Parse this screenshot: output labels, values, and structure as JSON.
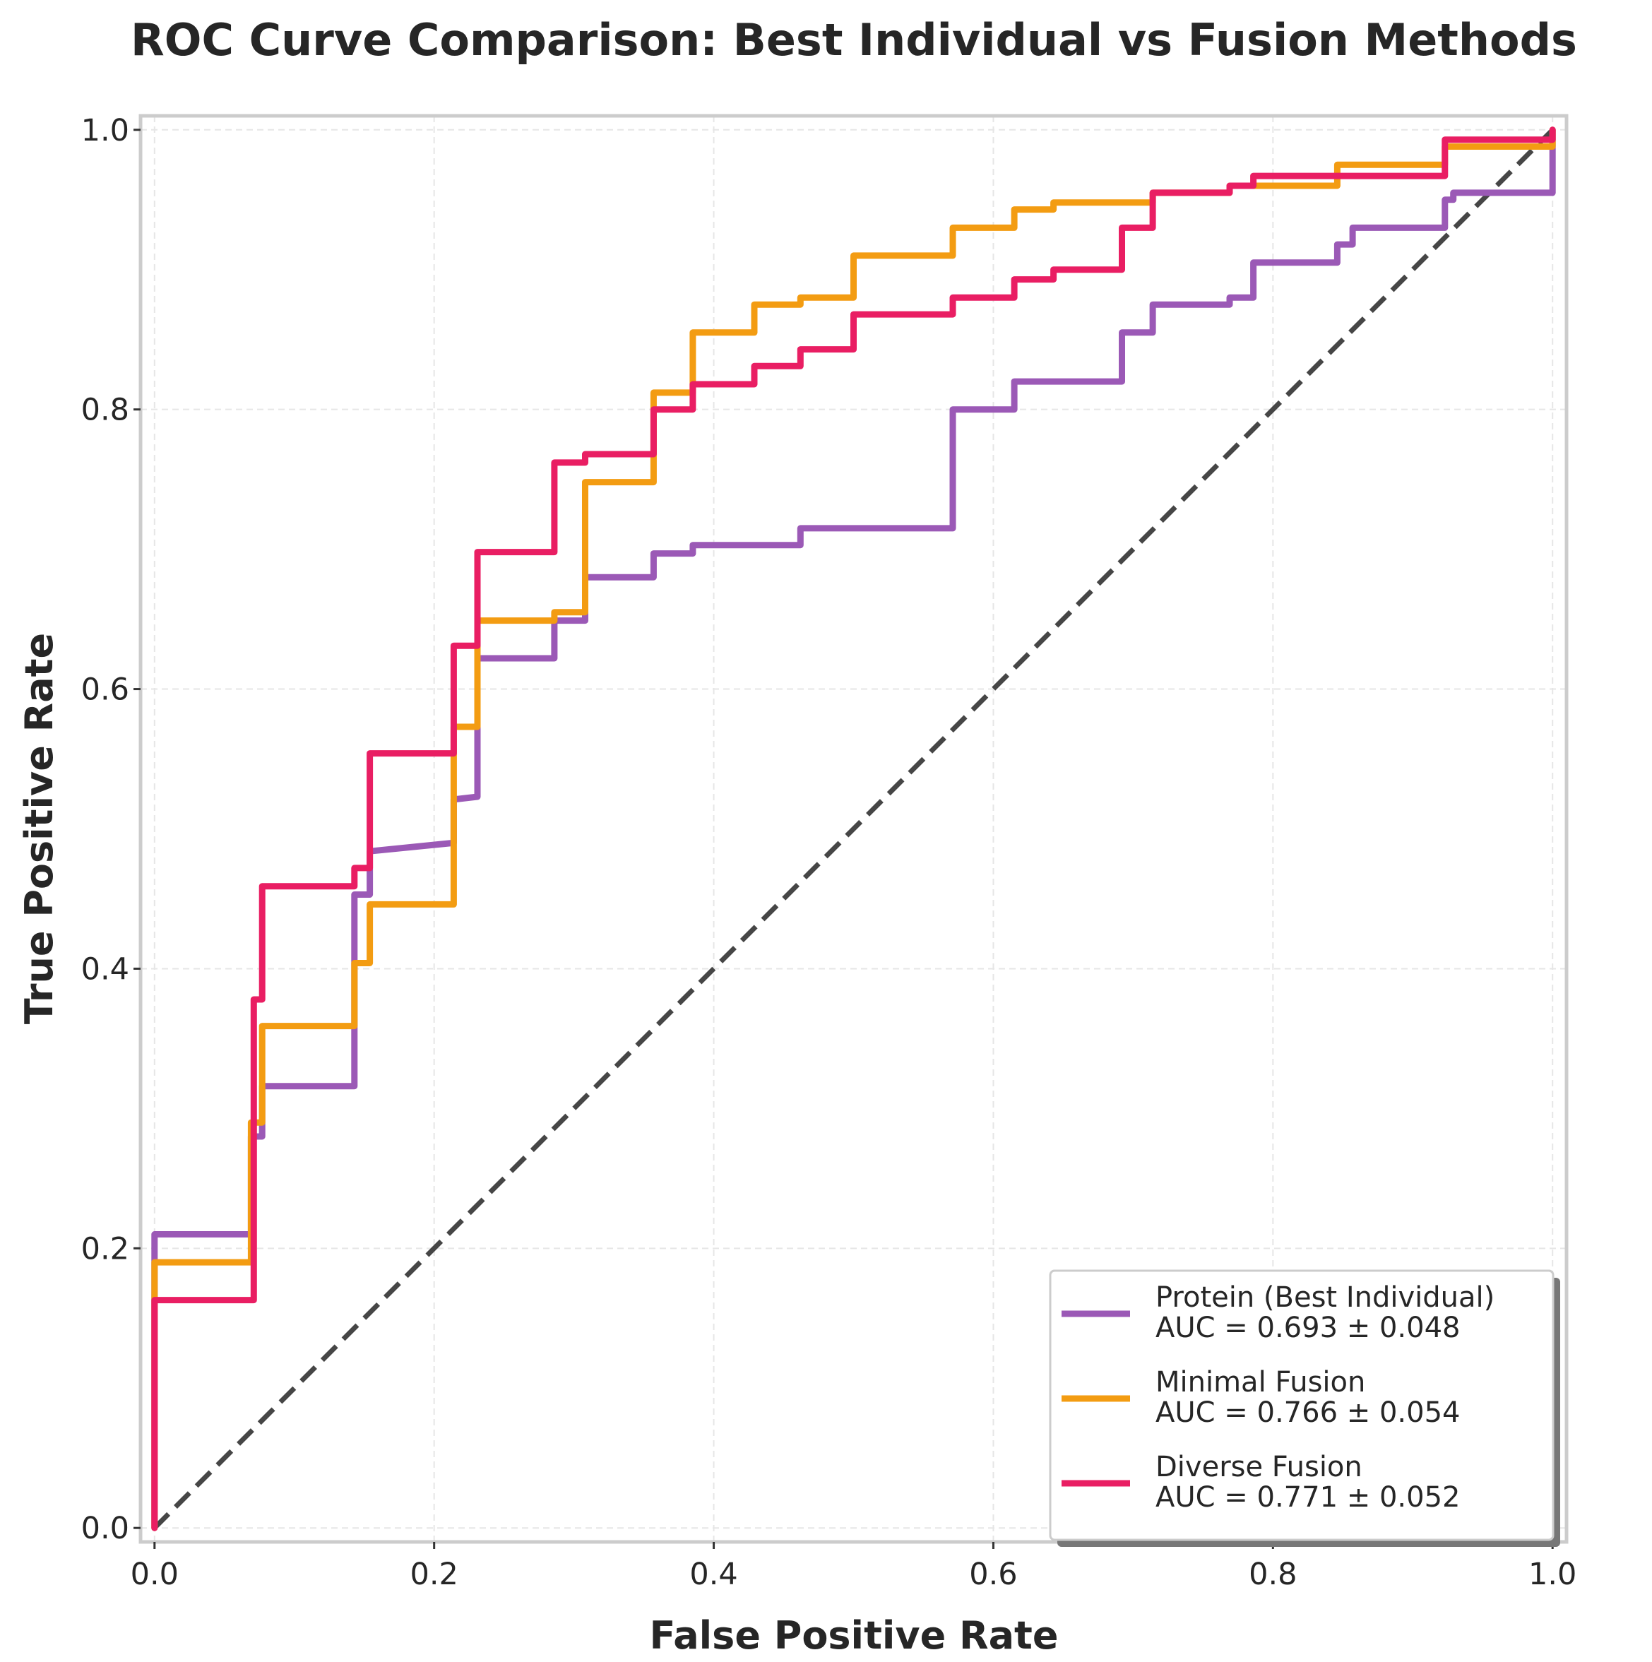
{
  "chart_data": {
    "type": "line",
    "title": "ROC Curve Comparison: Best Individual vs Fusion Methods",
    "xlabel": "False Positive Rate",
    "ylabel": "True Positive Rate",
    "xlim": [
      -0.01,
      1.01
    ],
    "ylim": [
      -0.01,
      1.01
    ],
    "x_ticks": [
      "0.0",
      "0.2",
      "0.4",
      "0.6",
      "0.8",
      "1.0"
    ],
    "y_ticks": [
      "0.0",
      "0.2",
      "0.4",
      "0.6",
      "0.8",
      "1.0"
    ],
    "grid": true,
    "legend_position": "lower-right",
    "series": [
      {
        "name": "Protein (Best Individual)",
        "auc_label": "AUC = 0.693 ± 0.048",
        "color": "#9b59b6",
        "points": [
          [
            0,
            0
          ],
          [
            0,
            0.2
          ],
          [
            0,
            0.21
          ],
          [
            0.069,
            0.21
          ],
          [
            0.069,
            0.28
          ],
          [
            0.077,
            0.28
          ],
          [
            0.077,
            0.316
          ],
          [
            0.143,
            0.316
          ],
          [
            0.143,
            0.453
          ],
          [
            0.154,
            0.453
          ],
          [
            0.154,
            0.484
          ],
          [
            0.214,
            0.49
          ],
          [
            0.214,
            0.521
          ],
          [
            0.231,
            0.523
          ],
          [
            0.231,
            0.622
          ],
          [
            0.286,
            0.622
          ],
          [
            0.286,
            0.649
          ],
          [
            0.308,
            0.649
          ],
          [
            0.308,
            0.68
          ],
          [
            0.357,
            0.68
          ],
          [
            0.357,
            0.697
          ],
          [
            0.385,
            0.697
          ],
          [
            0.385,
            0.703
          ],
          [
            0.462,
            0.703
          ],
          [
            0.462,
            0.715
          ],
          [
            0.571,
            0.715
          ],
          [
            0.571,
            0.8
          ],
          [
            0.615,
            0.8
          ],
          [
            0.615,
            0.82
          ],
          [
            0.692,
            0.82
          ],
          [
            0.692,
            0.855
          ],
          [
            0.714,
            0.855
          ],
          [
            0.714,
            0.875
          ],
          [
            0.769,
            0.875
          ],
          [
            0.769,
            0.88
          ],
          [
            0.786,
            0.88
          ],
          [
            0.786,
            0.905
          ],
          [
            0.846,
            0.905
          ],
          [
            0.846,
            0.918
          ],
          [
            0.857,
            0.918
          ],
          [
            0.857,
            0.93
          ],
          [
            0.923,
            0.93
          ],
          [
            0.923,
            0.95
          ],
          [
            0.929,
            0.95
          ],
          [
            0.929,
            0.955
          ],
          [
            1.0,
            0.955
          ],
          [
            1.0,
            1.0
          ]
        ]
      },
      {
        "name": "Minimal Fusion",
        "auc_label": "AUC = 0.766 ± 0.054",
        "color": "#f39c12",
        "points": [
          [
            0,
            0
          ],
          [
            0,
            0.17
          ],
          [
            0,
            0.19
          ],
          [
            0.069,
            0.19
          ],
          [
            0.069,
            0.29
          ],
          [
            0.077,
            0.29
          ],
          [
            0.077,
            0.359
          ],
          [
            0.143,
            0.359
          ],
          [
            0.143,
            0.404
          ],
          [
            0.154,
            0.404
          ],
          [
            0.154,
            0.446
          ],
          [
            0.214,
            0.446
          ],
          [
            0.214,
            0.573
          ],
          [
            0.231,
            0.573
          ],
          [
            0.231,
            0.649
          ],
          [
            0.286,
            0.649
          ],
          [
            0.286,
            0.655
          ],
          [
            0.308,
            0.655
          ],
          [
            0.308,
            0.748
          ],
          [
            0.357,
            0.748
          ],
          [
            0.357,
            0.812
          ],
          [
            0.385,
            0.812
          ],
          [
            0.385,
            0.855
          ],
          [
            0.429,
            0.855
          ],
          [
            0.429,
            0.875
          ],
          [
            0.462,
            0.875
          ],
          [
            0.462,
            0.88
          ],
          [
            0.5,
            0.88
          ],
          [
            0.5,
            0.91
          ],
          [
            0.571,
            0.91
          ],
          [
            0.571,
            0.93
          ],
          [
            0.615,
            0.93
          ],
          [
            0.615,
            0.943
          ],
          [
            0.643,
            0.943
          ],
          [
            0.643,
            0.948
          ],
          [
            0.714,
            0.948
          ],
          [
            0.714,
            0.955
          ],
          [
            0.769,
            0.955
          ],
          [
            0.769,
            0.96
          ],
          [
            0.846,
            0.96
          ],
          [
            0.846,
            0.975
          ],
          [
            0.923,
            0.975
          ],
          [
            0.923,
            0.988
          ],
          [
            1.0,
            0.988
          ],
          [
            1.0,
            1.0
          ]
        ]
      },
      {
        "name": "Diverse Fusion",
        "auc_label": "AUC = 0.771 ± 0.052",
        "color": "#e91e63",
        "points": [
          [
            0,
            0
          ],
          [
            0,
            0.163
          ],
          [
            0.071,
            0.163
          ],
          [
            0.071,
            0.378
          ],
          [
            0.077,
            0.378
          ],
          [
            0.077,
            0.459
          ],
          [
            0.143,
            0.459
          ],
          [
            0.143,
            0.472
          ],
          [
            0.154,
            0.472
          ],
          [
            0.154,
            0.554
          ],
          [
            0.214,
            0.554
          ],
          [
            0.214,
            0.631
          ],
          [
            0.231,
            0.631
          ],
          [
            0.231,
            0.698
          ],
          [
            0.286,
            0.698
          ],
          [
            0.286,
            0.762
          ],
          [
            0.308,
            0.762
          ],
          [
            0.308,
            0.768
          ],
          [
            0.357,
            0.768
          ],
          [
            0.357,
            0.8
          ],
          [
            0.385,
            0.8
          ],
          [
            0.385,
            0.818
          ],
          [
            0.429,
            0.818
          ],
          [
            0.429,
            0.831
          ],
          [
            0.462,
            0.831
          ],
          [
            0.462,
            0.843
          ],
          [
            0.5,
            0.843
          ],
          [
            0.5,
            0.868
          ],
          [
            0.571,
            0.868
          ],
          [
            0.571,
            0.88
          ],
          [
            0.615,
            0.88
          ],
          [
            0.615,
            0.893
          ],
          [
            0.643,
            0.893
          ],
          [
            0.643,
            0.9
          ],
          [
            0.692,
            0.9
          ],
          [
            0.692,
            0.93
          ],
          [
            0.714,
            0.93
          ],
          [
            0.714,
            0.955
          ],
          [
            0.769,
            0.955
          ],
          [
            0.769,
            0.96
          ],
          [
            0.786,
            0.96
          ],
          [
            0.786,
            0.967
          ],
          [
            0.923,
            0.967
          ],
          [
            0.923,
            0.993
          ],
          [
            1.0,
            0.993
          ],
          [
            1.0,
            1.0
          ]
        ]
      }
    ],
    "reference_line": {
      "points": [
        [
          0,
          0
        ],
        [
          1,
          1
        ]
      ],
      "color": "#333333"
    }
  }
}
